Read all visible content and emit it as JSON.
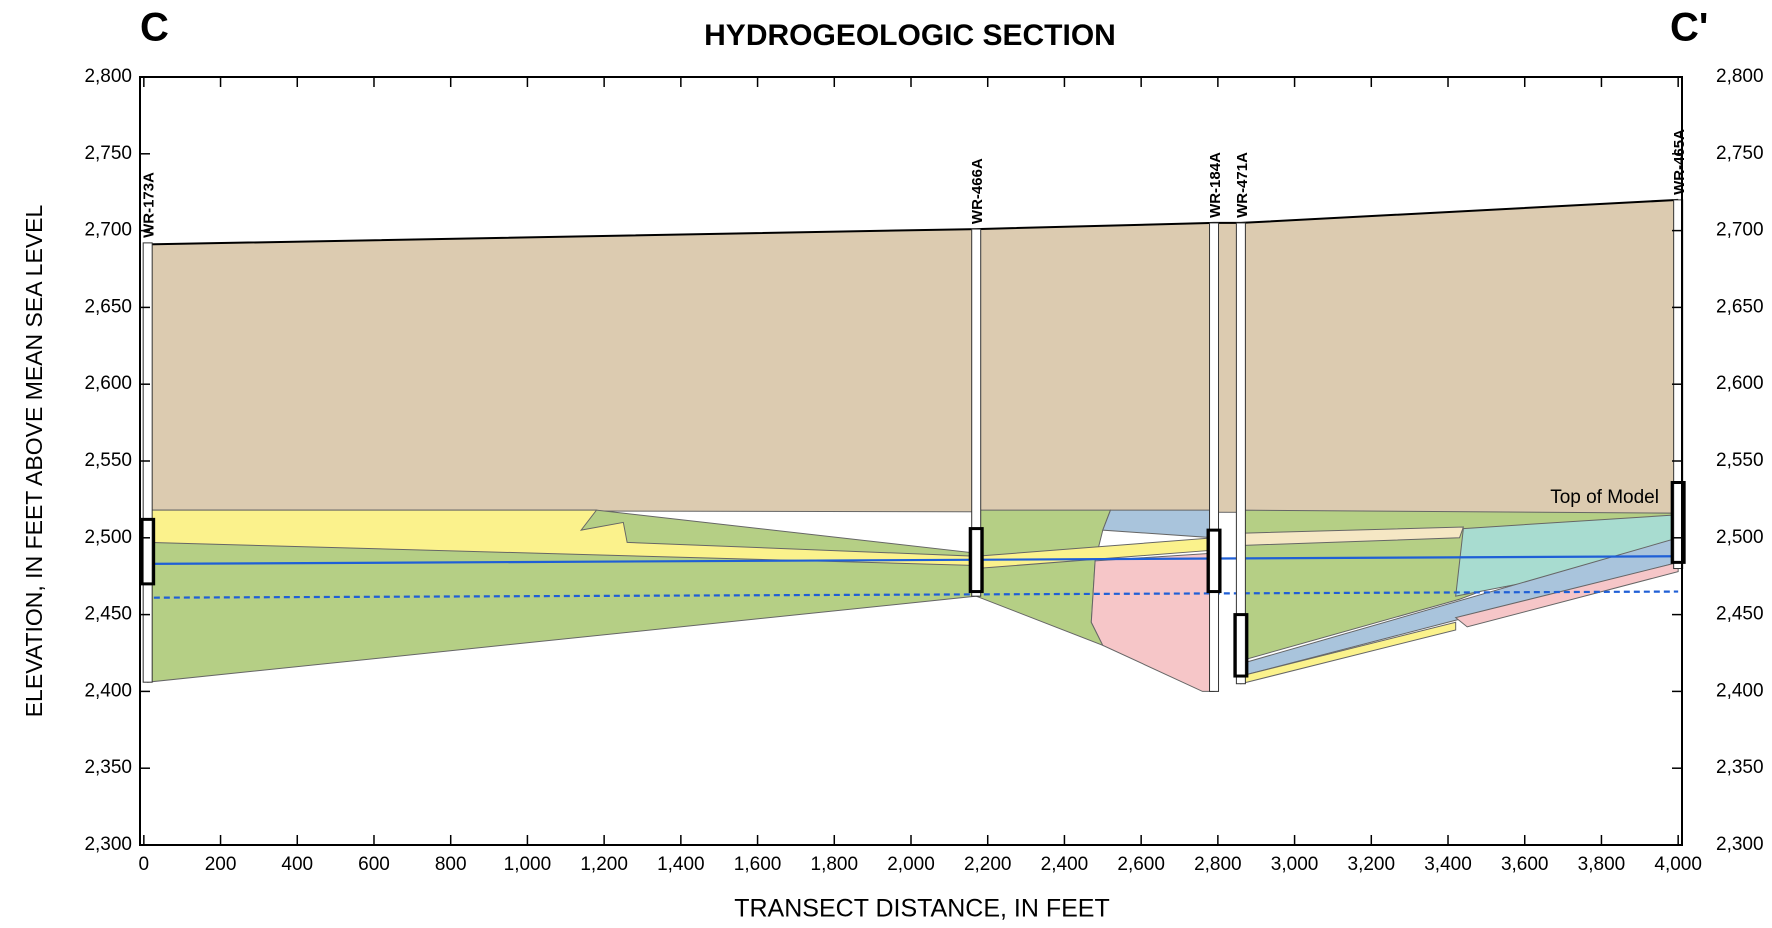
{
  "chart_data": {
    "type": "cross-section",
    "title": "HYDROGEOLOGIC SECTION",
    "left_label": "C",
    "right_label": "C'",
    "x_label": "TRANSECT DISTANCE, IN FEET",
    "y_label": "ELEVATION, IN FEET ABOVE MEAN SEA LEVEL",
    "annotation": {
      "text": "Top of Model",
      "x": 3950,
      "y": 2518
    },
    "xlim": [
      -10,
      4010
    ],
    "ylim": [
      2300,
      2800
    ],
    "xticks": [
      0,
      200,
      400,
      600,
      800,
      {
        "value": 1000,
        "label": "1,000"
      },
      {
        "value": 1200,
        "label": "1,200"
      },
      {
        "value": 1400,
        "label": "1,400"
      },
      {
        "value": 1600,
        "label": "1,600"
      },
      {
        "value": 1800,
        "label": "1,800"
      },
      {
        "value": 2000,
        "label": "2,000"
      },
      {
        "value": 2200,
        "label": "2,200"
      },
      {
        "value": 2400,
        "label": "2,400"
      },
      {
        "value": 2600,
        "label": "2,600"
      },
      {
        "value": 2800,
        "label": "2,800"
      },
      {
        "value": 3000,
        "label": "3,000"
      },
      {
        "value": 3200,
        "label": "3,200"
      },
      {
        "value": 3400,
        "label": "3,400"
      },
      {
        "value": 3600,
        "label": "3,600"
      },
      {
        "value": 3800,
        "label": "3,800"
      },
      {
        "value": 4000,
        "label": "4,000"
      }
    ],
    "yticks": [
      {
        "value": 2300,
        "label": "2,300"
      },
      {
        "value": 2350,
        "label": "2,350"
      },
      {
        "value": 2400,
        "label": "2,400"
      },
      {
        "value": 2450,
        "label": "2,450"
      },
      {
        "value": 2500,
        "label": "2,500"
      },
      {
        "value": 2550,
        "label": "2,550"
      },
      {
        "value": 2600,
        "label": "2,600"
      },
      {
        "value": 2650,
        "label": "2,650"
      },
      {
        "value": 2700,
        "label": "2,700"
      },
      {
        "value": 2750,
        "label": "2,750"
      },
      {
        "value": 2800,
        "label": "2,800"
      }
    ],
    "layers": [
      {
        "color": "#dccbb0",
        "x": [
          10,
          2170,
          2790,
          2860,
          4000,
          4000,
          10
        ],
        "y": [
          2691,
          2701,
          2705,
          2705,
          2720,
          2516,
          2518
        ]
      },
      {
        "color": "#b5cf85",
        "x": [
          10,
          1180,
          2170,
          2170,
          10
        ],
        "y": [
          2518,
          2518,
          2490,
          2462,
          2406
        ]
      },
      {
        "color": "#fbf28c",
        "x": [
          10,
          1180,
          1140,
          1250,
          1260,
          2170,
          2170,
          10
        ],
        "y": [
          2518,
          2518,
          2505,
          2510,
          2497,
          2488,
          2482,
          2497
        ]
      },
      {
        "color": "#b5cf85",
        "x": [
          2170,
          2520,
          2500,
          2480,
          2470,
          2500,
          2170
        ],
        "y": [
          2518,
          2518,
          2505,
          2485,
          2445,
          2430,
          2462
        ]
      },
      {
        "color": "#a9c4dc",
        "x": [
          2520,
          2790,
          2790,
          2500
        ],
        "y": [
          2518,
          2518,
          2500,
          2505
        ]
      },
      {
        "color": "#f6c6c8",
        "x": [
          2480,
          2790,
          2790,
          2760,
          2500,
          2470
        ],
        "y": [
          2485,
          2490,
          2400,
          2400,
          2430,
          2445
        ]
      },
      {
        "color": "#fbf28c",
        "x": [
          2170,
          2790,
          2790,
          2170
        ],
        "y": [
          2488,
          2500,
          2492,
          2480
        ]
      },
      {
        "color": "#b5cf85",
        "x": [
          2860,
          4000,
          4000,
          3430,
          2860
        ],
        "y": [
          2518,
          2516,
          2513,
          2460,
          2420
        ]
      },
      {
        "color": "#a8dcd0",
        "x": [
          3440,
          4000,
          4000,
          3420
        ],
        "y": [
          2506,
          2515,
          2490,
          2462
        ]
      },
      {
        "color": "#f5e7c4",
        "x": [
          2860,
          3440,
          3430,
          2860
        ],
        "y": [
          2503,
          2507,
          2500,
          2495
        ]
      },
      {
        "color": "#a9c4dc",
        "x": [
          2860,
          4000,
          4000,
          2860
        ],
        "y": [
          2418,
          2500,
          2484,
          2410
        ]
      },
      {
        "color": "#f6c6c8",
        "x": [
          3420,
          4000,
          4000,
          3450
        ],
        "y": [
          2448,
          2484,
          2478,
          2442
        ]
      },
      {
        "color": "#fbf28c",
        "x": [
          2860,
          3420,
          3420,
          2860
        ],
        "y": [
          2410,
          2445,
          2440,
          2405
        ]
      }
    ],
    "land_surface": {
      "color": "#000000",
      "x": [
        10,
        2170,
        2790,
        2860,
        4000
      ],
      "y": [
        2691,
        2701,
        2705,
        2705,
        2720
      ]
    },
    "water_levels": [
      {
        "color": "#1f5fd6",
        "style": "solid",
        "x": [
          0,
          4000
        ],
        "values": [
          2483,
          2488
        ]
      },
      {
        "color": "#1f5fd6",
        "style": "dashed",
        "x": [
          0,
          4000
        ],
        "values": [
          2461,
          2465
        ]
      }
    ],
    "wells": [
      {
        "name": "WR-173A",
        "x": 10,
        "top": 2692,
        "bottom": 2406,
        "screen": [
          2512,
          2470
        ]
      },
      {
        "name": "WR-466A",
        "x": 2170,
        "top": 2701,
        "bottom": 2462,
        "screen": [
          2506,
          2465
        ]
      },
      {
        "name": "WR-184A",
        "x": 2790,
        "top": 2705,
        "bottom": 2400,
        "screen": [
          2505,
          2465
        ]
      },
      {
        "name": "WR-471A",
        "x": 2860,
        "top": 2705,
        "bottom": 2405,
        "screen": [
          2450,
          2410
        ]
      },
      {
        "name": "WR-465A",
        "x": 4000,
        "top": 2720,
        "bottom": 2480,
        "screen": [
          2536,
          2484
        ]
      }
    ]
  }
}
